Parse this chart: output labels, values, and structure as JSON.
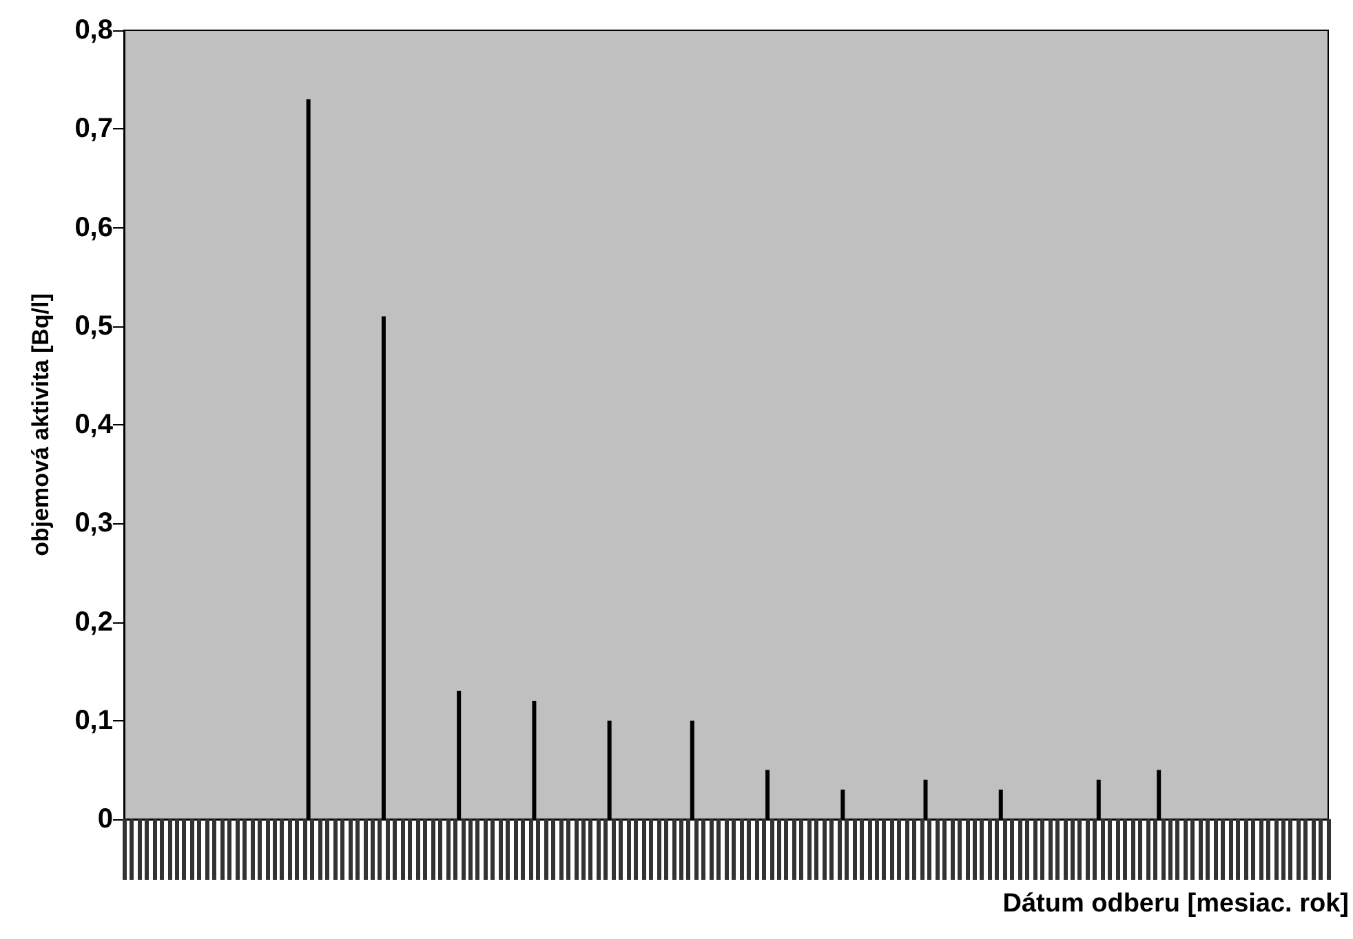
{
  "chart_data": {
    "type": "bar",
    "xlabel": "Dátum odberu [mesiac. rok]",
    "ylabel": "objemová aktivita [Bq/l]",
    "categories": [
      null,
      null,
      null,
      null,
      null,
      null,
      null,
      null,
      null,
      null,
      null,
      null,
      null,
      null,
      null,
      null,
      null,
      null,
      null,
      null,
      null,
      null,
      null,
      null,
      null,
      null,
      null,
      null,
      null,
      null,
      null,
      null,
      null,
      null,
      null,
      null,
      null,
      null,
      null,
      null,
      null,
      null,
      null,
      null,
      null,
      null,
      null,
      null,
      null,
      null,
      null,
      null,
      null,
      null,
      null,
      null,
      null,
      null,
      null,
      null,
      null,
      null,
      null,
      null,
      null,
      null,
      null,
      null,
      null,
      null,
      null,
      null,
      null,
      null,
      null,
      null,
      null,
      null,
      null,
      null,
      null,
      null,
      null,
      null,
      null,
      null,
      null,
      null,
      null,
      null,
      null,
      null,
      null,
      null,
      null,
      null,
      null,
      null,
      null,
      null,
      null,
      null,
      null,
      null,
      null,
      null,
      null,
      null,
      null,
      null,
      null,
      null,
      null,
      null,
      null,
      null,
      null,
      null,
      null,
      null,
      null,
      null,
      null,
      null,
      null,
      null,
      null,
      null,
      null,
      null,
      null,
      null,
      null,
      null,
      null,
      null,
      null,
      null,
      null,
      null,
      null,
      null,
      null,
      null,
      null,
      null,
      null,
      null,
      null,
      null,
      null,
      null,
      null,
      null,
      null,
      null,
      null,
      null,
      null,
      null
    ],
    "values": [
      null,
      null,
      null,
      null,
      null,
      null,
      null,
      null,
      null,
      null,
      null,
      null,
      null,
      null,
      null,
      null,
      null,
      null,
      null,
      null,
      null,
      null,
      null,
      null,
      0.73,
      null,
      null,
      null,
      null,
      null,
      null,
      null,
      null,
      null,
      0.51,
      null,
      null,
      null,
      null,
      null,
      null,
      null,
      null,
      null,
      0.13,
      null,
      null,
      null,
      null,
      null,
      null,
      null,
      null,
      null,
      0.12,
      null,
      null,
      null,
      null,
      null,
      null,
      null,
      null,
      null,
      0.1,
      null,
      null,
      null,
      null,
      null,
      null,
      null,
      null,
      null,
      null,
      0.1,
      null,
      null,
      null,
      null,
      null,
      null,
      null,
      null,
      null,
      0.05,
      null,
      null,
      null,
      null,
      null,
      null,
      null,
      null,
      null,
      0.03,
      null,
      null,
      null,
      null,
      null,
      null,
      null,
      null,
      null,
      null,
      0.04,
      null,
      null,
      null,
      null,
      null,
      null,
      null,
      null,
      null,
      0.03,
      null,
      null,
      null,
      null,
      null,
      null,
      null,
      null,
      null,
      null,
      null,
      null,
      0.04,
      null,
      null,
      null,
      null,
      null,
      null,
      null,
      0.05,
      null,
      null,
      null,
      null,
      null,
      null,
      null,
      null,
      null,
      null,
      null,
      null,
      null,
      null,
      null,
      null,
      null,
      null,
      null,
      null,
      null,
      null
    ],
    "color": "#000000",
    "ylim": [
      0,
      0.8
    ],
    "yticks": [
      0,
      {
        "value": 0.1,
        "label": "0,1"
      },
      {
        "value": 0.2,
        "label": "0,2"
      },
      {
        "value": 0.3,
        "label": "0,3"
      },
      {
        "value": 0.4,
        "label": "0,4"
      },
      {
        "value": 0.5,
        "label": "0,5"
      },
      {
        "value": 0.6,
        "label": "0,6"
      },
      {
        "value": 0.7,
        "label": "0,7"
      },
      {
        "value": 0.8,
        "label": "0,8"
      }
    ],
    "grid": false
  }
}
